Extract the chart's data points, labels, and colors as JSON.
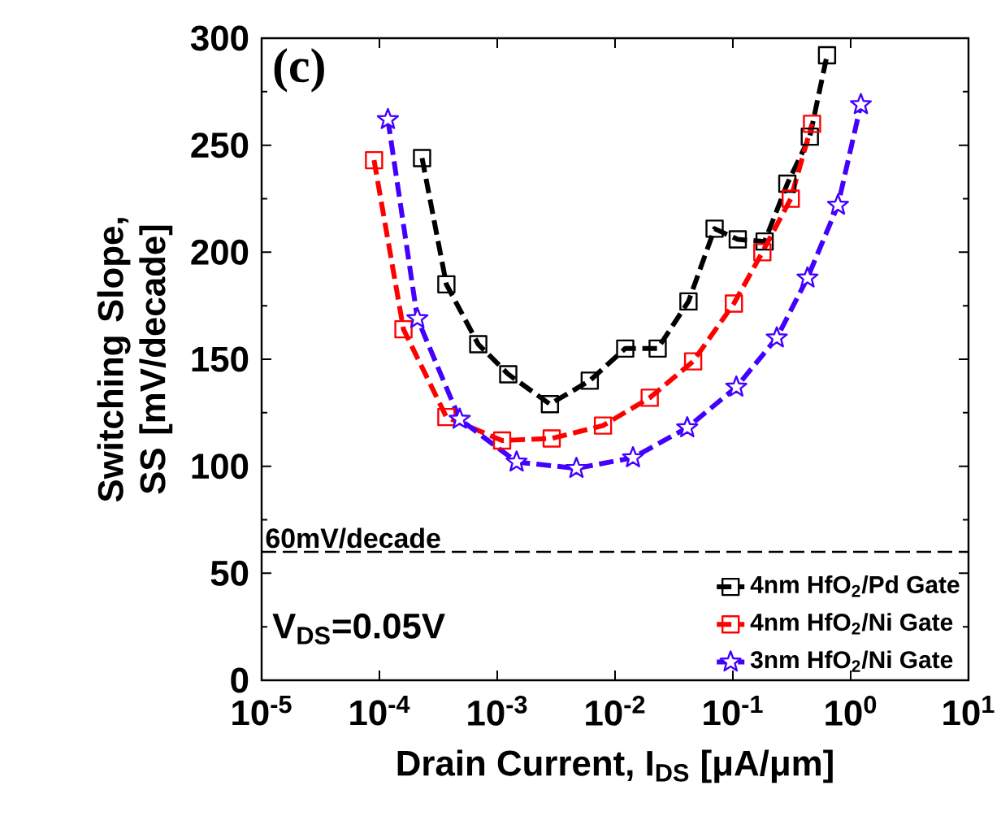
{
  "chart_data": {
    "type": "line",
    "xlabel": "Drain Current, I$_{DS}$ [μA/μm]",
    "ylabel": "Switching Slope, SS [mV/decade]",
    "log": "x",
    "xlim": [
      1e-05,
      10
    ],
    "xticks": [
      {
        "value": 1e-05,
        "label": "10$^{-5}$"
      },
      {
        "value": 0.0001,
        "label": "10$^{-4}$"
      },
      {
        "value": 0.001,
        "label": "10$^{-3}$"
      },
      {
        "value": 0.01,
        "label": "10$^{-2}$"
      },
      {
        "value": 0.1,
        "label": "10$^{-1}$"
      },
      {
        "value": 1,
        "label": "10$^{0}$"
      },
      {
        "value": 10,
        "label": "10$^{1}$"
      }
    ],
    "ylim": [
      0,
      300
    ],
    "yticks": [
      0,
      50,
      100,
      150,
      200,
      250,
      300
    ],
    "grid": false,
    "legend": "bottom right",
    "series": [
      {
        "name": "4nm HfO$_{2}$/Pd Gate",
        "color": "#000000",
        "marker": "square",
        "line_style": "dashed",
        "x": [
          0.00023,
          0.00037,
          0.00069,
          0.00124,
          0.0028,
          0.0061,
          0.0122,
          0.023,
          0.042,
          0.07,
          0.11,
          0.186,
          0.29,
          0.45,
          0.63
        ],
        "values": [
          244,
          185,
          157,
          143,
          129,
          140,
          155,
          155,
          177,
          211,
          206,
          205,
          232,
          254,
          292
        ]
      },
      {
        "name": "4nm HfO$_{2}$/Ni Gate",
        "color": "#ff0000",
        "marker": "square",
        "line_style": "dashed",
        "x": [
          9e-05,
          0.00016,
          0.00037,
          0.0011,
          0.0029,
          0.0079,
          0.0197,
          0.046,
          0.102,
          0.178,
          0.31,
          0.47
        ],
        "values": [
          243,
          164,
          123,
          112,
          113,
          119,
          132,
          149,
          176,
          200,
          225,
          260
        ]
      },
      {
        "name": "3nm HfO$_{2}$/Ni Gate",
        "color": "#4400ff",
        "marker": "star",
        "line_style": "dashed",
        "x": [
          0.000118,
          0.00021,
          0.00048,
          0.00146,
          0.0047,
          0.0142,
          0.041,
          0.107,
          0.236,
          0.43,
          0.78,
          1.22
        ],
        "values": [
          262,
          169,
          122,
          102,
          99,
          104,
          118,
          137,
          160,
          188,
          222,
          269
        ]
      }
    ],
    "ref_lines": [
      {
        "axis": "y",
        "value": 60,
        "label": "60mV/decade",
        "color": "#000000",
        "line_style": "dashed"
      }
    ],
    "annotations": [
      "(c)",
      "V$_{DS}$=0.05V"
    ]
  }
}
